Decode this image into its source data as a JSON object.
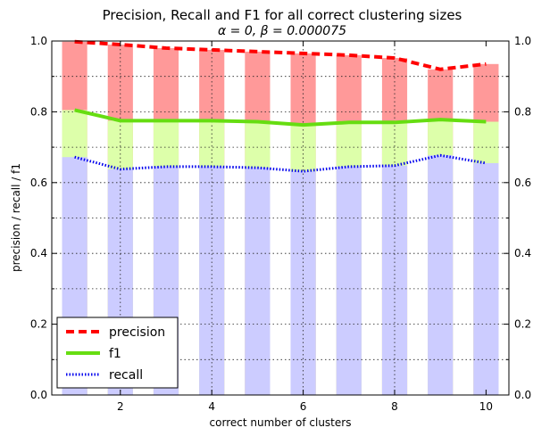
{
  "chart_data": {
    "type": "bar",
    "title": "Precision, Recall and F1 for all correct clustering sizes",
    "subtitle": "α = 0, β = 0.000075",
    "xlabel": "correct number of clusters",
    "ylabel": "precision / recall / f1",
    "xlim": [
      0.5,
      10.5
    ],
    "ylim": [
      0.0,
      1.0
    ],
    "xticks": [
      "2",
      "4",
      "6",
      "8",
      "10"
    ],
    "yticks_left": [
      "0.0",
      "0.2",
      "0.4",
      "0.6",
      "0.8",
      "1.0"
    ],
    "yticks_right": [
      "0.0",
      "0.2",
      "0.4",
      "0.6",
      "0.8",
      "1.0"
    ],
    "grid": "dotted",
    "legend_position": "lower-left",
    "x": [
      1,
      2,
      3,
      4,
      5,
      6,
      7,
      8,
      9,
      10
    ],
    "series": [
      {
        "name": "precision",
        "style": "dashed",
        "color": "#ff0000",
        "bar_color": "#ff9999",
        "values": [
          0.998,
          0.99,
          0.98,
          0.975,
          0.97,
          0.965,
          0.96,
          0.952,
          0.92,
          0.935
        ]
      },
      {
        "name": "f1",
        "style": "solid",
        "color": "#66dd11",
        "bar_color": "#ddffaa",
        "values": [
          0.805,
          0.775,
          0.775,
          0.775,
          0.772,
          0.763,
          0.77,
          0.77,
          0.778,
          0.772
        ]
      },
      {
        "name": "recall",
        "style": "dotted",
        "color": "#0000ee",
        "bar_color": "#ccccff",
        "values": [
          0.672,
          0.638,
          0.645,
          0.645,
          0.642,
          0.632,
          0.645,
          0.648,
          0.677,
          0.655
        ]
      }
    ]
  }
}
